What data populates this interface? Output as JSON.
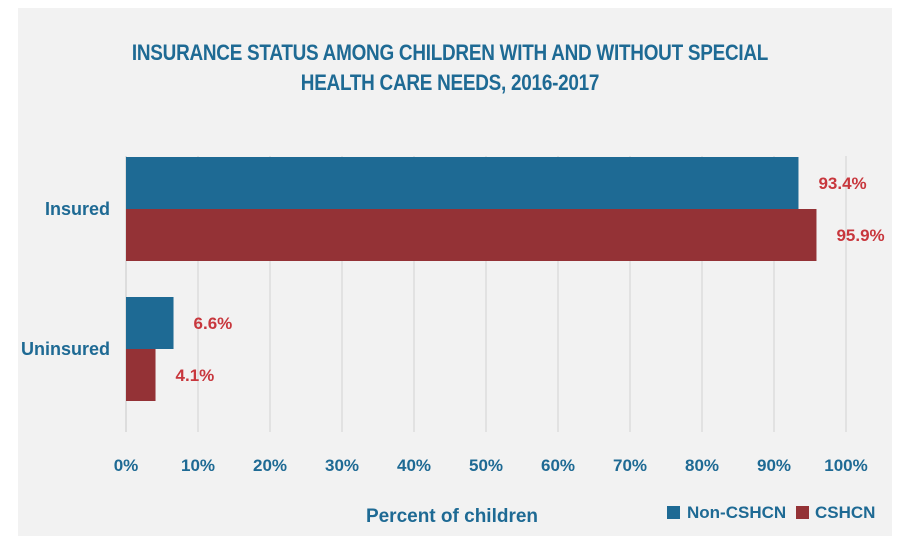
{
  "chart_data": {
    "type": "bar",
    "orientation": "horizontal",
    "title_lines": [
      "INSURANCE STATUS AMONG CHILDREN WITH AND WITHOUT SPECIAL",
      "HEALTH CARE NEEDS, 2016-2017"
    ],
    "categories": [
      "Insured",
      "Uninsured"
    ],
    "series": [
      {
        "name": "Non-CSHCN",
        "values": [
          93.4,
          6.6
        ],
        "labels": [
          "93.4%",
          "6.6%"
        ],
        "color": "#1e6a94"
      },
      {
        "name": "CSHCN",
        "values": [
          95.9,
          4.1
        ],
        "labels": [
          "95.9%",
          "4.1%"
        ],
        "color": "#943236"
      }
    ],
    "xlabel": "Percent of children",
    "xlim": [
      0,
      100
    ],
    "xticks": [
      "0%",
      "10%",
      "20%",
      "30%",
      "40%",
      "50%",
      "60%",
      "70%",
      "80%",
      "90%",
      "100%"
    ],
    "grid": "vertical",
    "legend": "bottom-right",
    "label_color": "#c8373d",
    "text_color": "#1e6a94",
    "background": "#f2f2f2"
  }
}
